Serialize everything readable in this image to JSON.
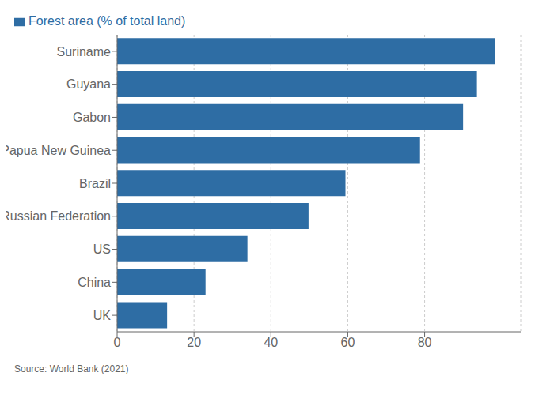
{
  "chart_data": {
    "type": "bar",
    "orientation": "horizontal",
    "categories": [
      "Suriname",
      "Guyana",
      "Gabon",
      "Papua New Guinea",
      "Brazil",
      "Russian Federation",
      "US",
      "China",
      "UK"
    ],
    "series": [
      {
        "name": "Forest area (% of total land)",
        "color": "#2e6da4",
        "values": [
          98.3,
          93.6,
          90.0,
          78.8,
          59.4,
          49.8,
          33.9,
          23.0,
          13.0
        ]
      }
    ],
    "xlim": [
      0,
      105
    ],
    "xticks": [
      0,
      20,
      40,
      60,
      80
    ],
    "grid": true,
    "legend": "upper left",
    "annotation": "Source: World Bank (2021)"
  }
}
